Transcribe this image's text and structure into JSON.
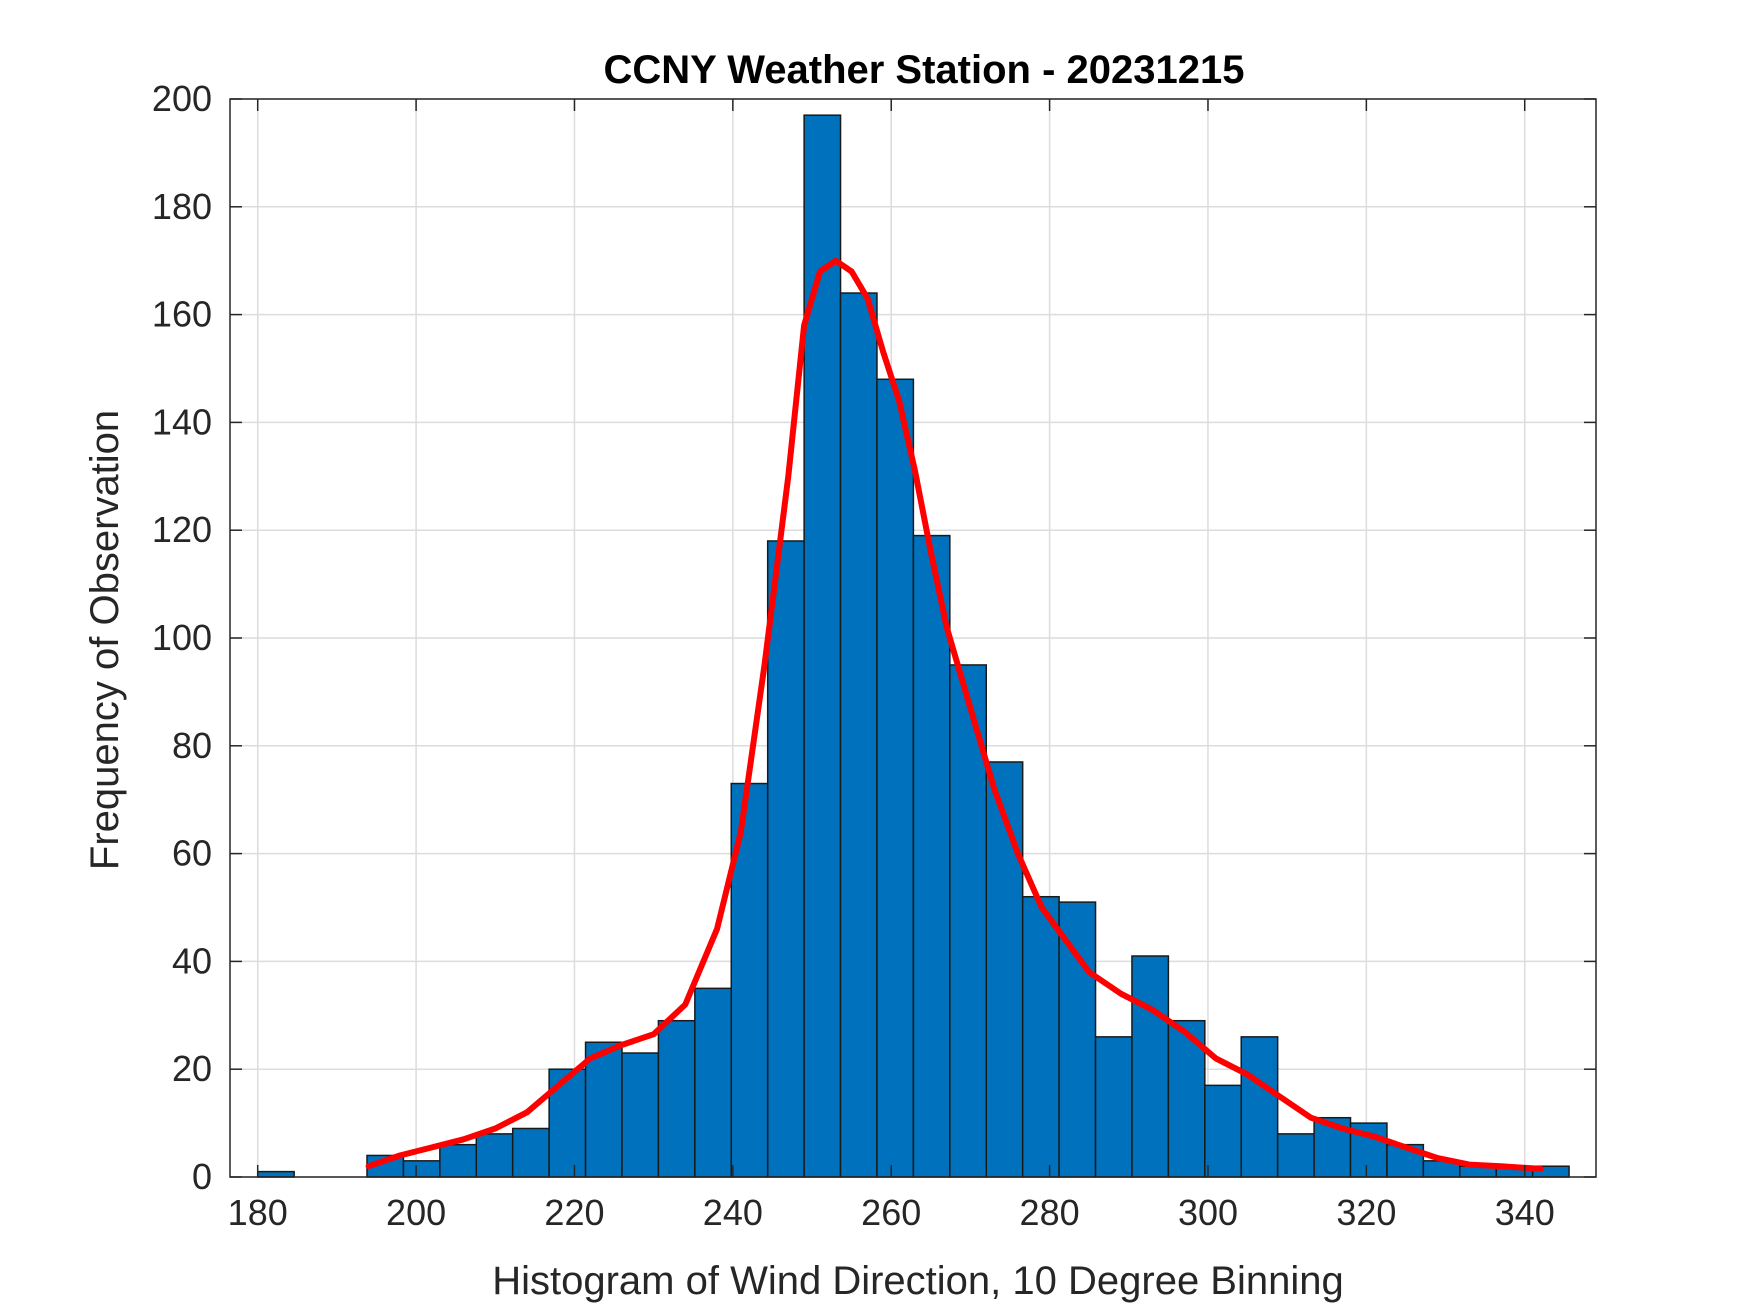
{
  "chart_data": {
    "type": "bar",
    "title": "CCNY Weather Station - 20231215",
    "xlabel": "Histogram of Wind Direction, 10 Degree Binning",
    "ylabel": "Frequency of Observation",
    "xlim": [
      176.5,
      349
    ],
    "ylim": [
      0,
      200
    ],
    "xticks": [
      180,
      200,
      220,
      240,
      260,
      280,
      300,
      320,
      340
    ],
    "yticks": [
      0,
      20,
      40,
      60,
      80,
      100,
      120,
      140,
      160,
      180,
      200
    ],
    "grid": true,
    "bar_color": "#0072BD",
    "curve_color": "#FF0000",
    "bins": [
      {
        "left": 180.0,
        "right": 184.6,
        "value": 1
      },
      {
        "left": 184.6,
        "right": 189.2,
        "value": 0
      },
      {
        "left": 189.2,
        "right": 193.8,
        "value": 0
      },
      {
        "left": 193.8,
        "right": 198.4,
        "value": 4
      },
      {
        "left": 198.4,
        "right": 203.0,
        "value": 3
      },
      {
        "left": 203.0,
        "right": 207.6,
        "value": 6
      },
      {
        "left": 207.6,
        "right": 212.2,
        "value": 8
      },
      {
        "left": 212.2,
        "right": 216.8,
        "value": 9
      },
      {
        "left": 216.8,
        "right": 221.4,
        "value": 20
      },
      {
        "left": 221.4,
        "right": 226.0,
        "value": 25
      },
      {
        "left": 226.0,
        "right": 230.6,
        "value": 23
      },
      {
        "left": 230.6,
        "right": 235.2,
        "value": 29
      },
      {
        "left": 235.2,
        "right": 239.8,
        "value": 35
      },
      {
        "left": 239.8,
        "right": 244.4,
        "value": 73
      },
      {
        "left": 244.4,
        "right": 249.0,
        "value": 118
      },
      {
        "left": 249.0,
        "right": 253.6,
        "value": 197
      },
      {
        "left": 253.6,
        "right": 258.2,
        "value": 164
      },
      {
        "left": 258.2,
        "right": 262.8,
        "value": 148
      },
      {
        "left": 262.8,
        "right": 267.4,
        "value": 119
      },
      {
        "left": 267.4,
        "right": 272.0,
        "value": 95
      },
      {
        "left": 272.0,
        "right": 276.6,
        "value": 77
      },
      {
        "left": 276.6,
        "right": 281.2,
        "value": 52
      },
      {
        "left": 281.2,
        "right": 285.8,
        "value": 51
      },
      {
        "left": 285.8,
        "right": 290.4,
        "value": 26
      },
      {
        "left": 290.4,
        "right": 295.0,
        "value": 41
      },
      {
        "left": 295.0,
        "right": 299.6,
        "value": 29
      },
      {
        "left": 299.6,
        "right": 304.2,
        "value": 17
      },
      {
        "left": 304.2,
        "right": 308.8,
        "value": 26
      },
      {
        "left": 308.8,
        "right": 313.4,
        "value": 8
      },
      {
        "left": 313.4,
        "right": 318.0,
        "value": 11
      },
      {
        "left": 318.0,
        "right": 322.6,
        "value": 10
      },
      {
        "left": 322.6,
        "right": 327.2,
        "value": 6
      },
      {
        "left": 327.2,
        "right": 331.8,
        "value": 3
      },
      {
        "left": 331.8,
        "right": 336.4,
        "value": 2
      },
      {
        "left": 336.4,
        "right": 341.0,
        "value": 2
      },
      {
        "left": 341.0,
        "right": 345.6,
        "value": 2
      }
    ],
    "fit_curve": {
      "x": [
        194,
        198,
        202,
        206,
        210,
        214,
        218,
        222,
        226,
        230,
        234,
        238,
        241,
        244,
        247,
        249,
        251,
        253,
        255,
        257,
        259,
        261,
        263,
        265,
        267,
        270,
        273,
        276,
        279,
        282,
        285,
        289,
        293,
        297,
        301,
        305,
        309,
        313,
        317,
        321,
        325,
        329,
        333,
        337,
        342
      ],
      "y": [
        2,
        4,
        5.5,
        7,
        9,
        12,
        17,
        22,
        24.5,
        26.5,
        32,
        46,
        64,
        95,
        130,
        158,
        168,
        170,
        168,
        163,
        153,
        144,
        131,
        116,
        102,
        87,
        72,
        60,
        50,
        44,
        38,
        34,
        31,
        27,
        22,
        19,
        15,
        11,
        9,
        7.5,
        5.5,
        3.5,
        2.3,
        2,
        1.5
      ]
    }
  }
}
